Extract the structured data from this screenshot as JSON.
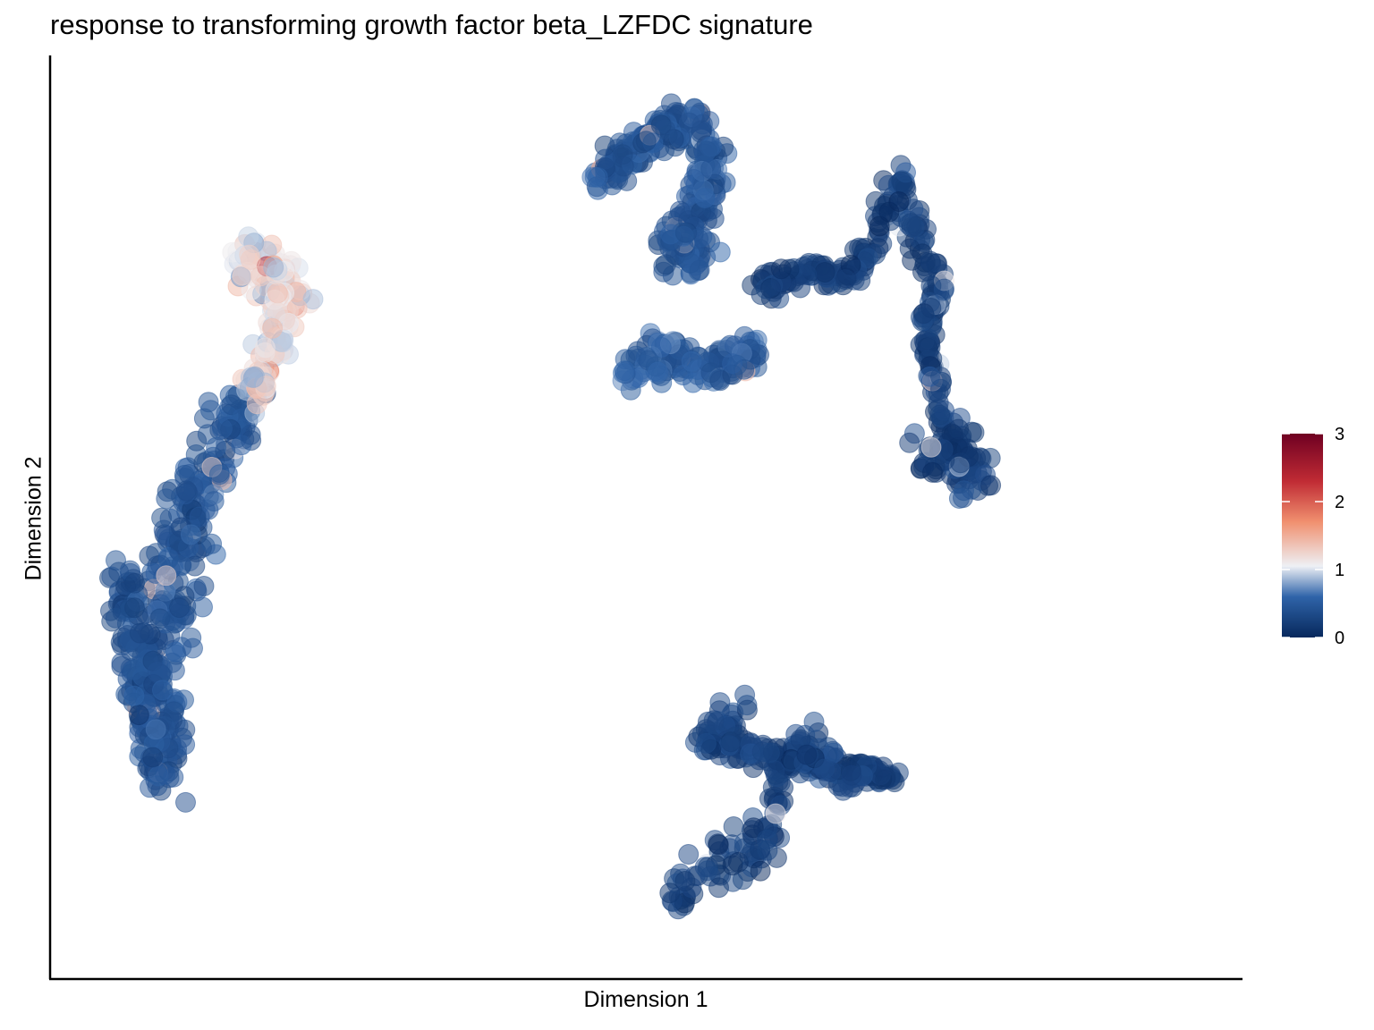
{
  "chart_data": {
    "type": "scatter",
    "title": "response to transforming growth factor beta_LZFDC signature",
    "xlabel": "Dimension 1",
    "ylabel": "Dimension 2",
    "x_ticks": "none",
    "y_ticks": "none",
    "grid": false,
    "point_alpha": 0.5,
    "colorbar": {
      "placement": "right",
      "min": 0,
      "max": 3,
      "ticks": [
        "0",
        "1",
        "2",
        "3"
      ],
      "colors": [
        "#07285c",
        "#2f64a9",
        "#eef0f5",
        "#f0906f",
        "#c02b34",
        "#6f0022"
      ],
      "stops": [
        0,
        0.6,
        1.05,
        1.7,
        2.3,
        3
      ]
    },
    "clusters": [
      {
        "x": [
          -0.2,
          1.4
        ],
        "y": [
          0.6,
          1.9
        ],
        "score_mean": 0.42
      },
      {
        "x": [
          0.6,
          3.6
        ],
        "y": [
          -4.4,
          -2.6
        ],
        "score_mean": 0.22
      },
      {
        "x": [
          1.8,
          3.9
        ],
        "y": [
          0.4,
          1.9
        ],
        "score_mean": 0.22
      },
      {
        "x": [
          -6.5,
          -4.3
        ],
        "y": [
          -3.6,
          -0.2
        ],
        "score_mean": 0.42
      },
      {
        "x": [
          -4.9,
          -3.6
        ],
        "y": [
          -0.6,
          1.1
        ],
        "score_mean": 1.15
      },
      {
        "x": [
          0.1,
          2.0
        ],
        "y": [
          -0.6,
          0.2
        ],
        "score_mean": 0.5
      }
    ]
  }
}
